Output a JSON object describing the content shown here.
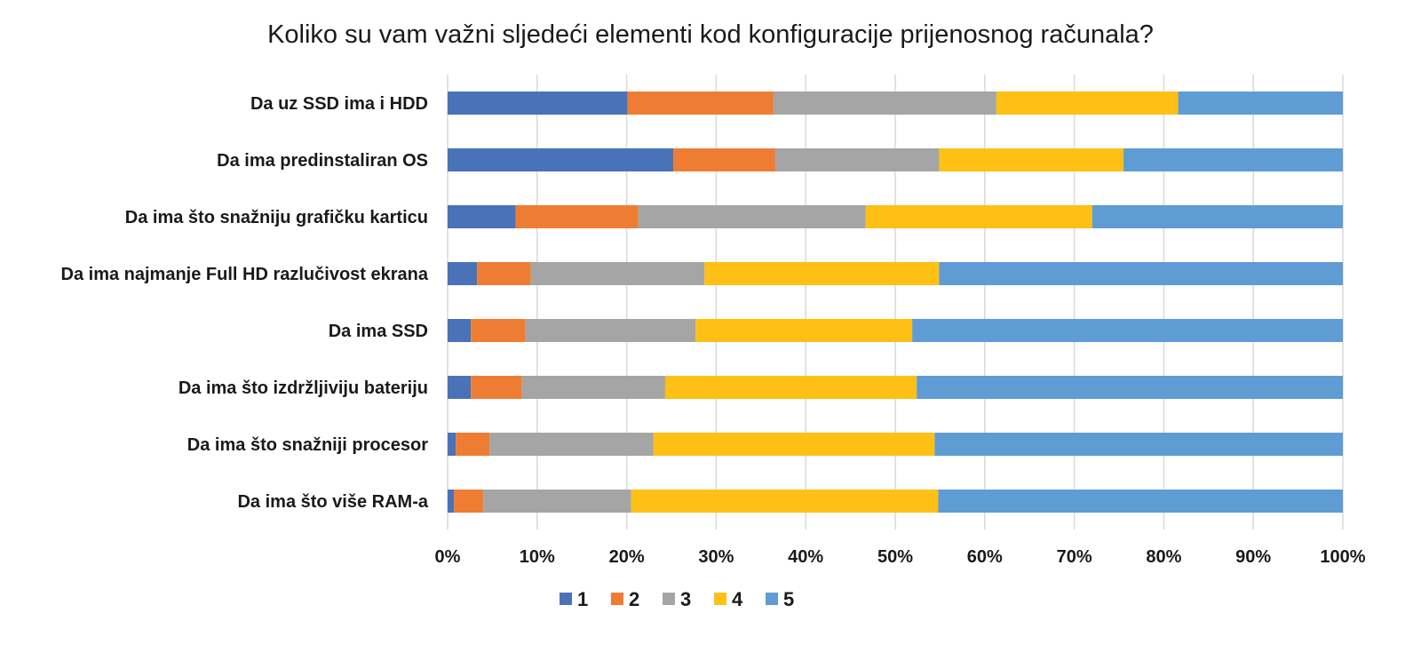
{
  "chart_data": {
    "type": "bar",
    "orientation": "horizontal",
    "stacked": "percent",
    "title": "Koliko su vam važni sljedeći elementi kod konfiguracije prijenosnog računala?",
    "categories": [
      "Da uz SSD ima i HDD",
      "Da ima predinstaliran OS",
      "Da ima što snažniju grafičku karticu",
      "Da ima najmanje Full HD razlučivost ekrana",
      "Da ima SSD",
      "Da ima što izdržljiviju bateriju",
      "Da ima što snažniji procesor",
      "Da ima što više RAM-a"
    ],
    "series": [
      {
        "name": "1",
        "color": "#4a72b8",
        "values": [
          20.1,
          25.2,
          7.6,
          3.3,
          2.6,
          2.6,
          0.9,
          0.7
        ]
      },
      {
        "name": "2",
        "color": "#ee7d33",
        "values": [
          16.3,
          11.4,
          13.7,
          6.0,
          6.1,
          5.7,
          3.8,
          3.3
        ]
      },
      {
        "name": "3",
        "color": "#a5a5a5",
        "values": [
          24.9,
          18.3,
          25.4,
          19.4,
          19.0,
          16.0,
          18.3,
          16.5
        ]
      },
      {
        "name": "4",
        "color": "#fec014",
        "values": [
          20.3,
          20.6,
          25.3,
          26.2,
          24.2,
          28.1,
          31.4,
          34.3
        ]
      },
      {
        "name": "5",
        "color": "#5f9cd4",
        "values": [
          18.4,
          24.5,
          28.0,
          45.1,
          48.1,
          47.6,
          45.6,
          45.2
        ]
      }
    ],
    "xlim": [
      0,
      100
    ],
    "xticks": [
      "0%",
      "10%",
      "20%",
      "30%",
      "40%",
      "50%",
      "60%",
      "70%",
      "80%",
      "90%",
      "100%"
    ],
    "grid": true,
    "legend_position": "bottom"
  }
}
